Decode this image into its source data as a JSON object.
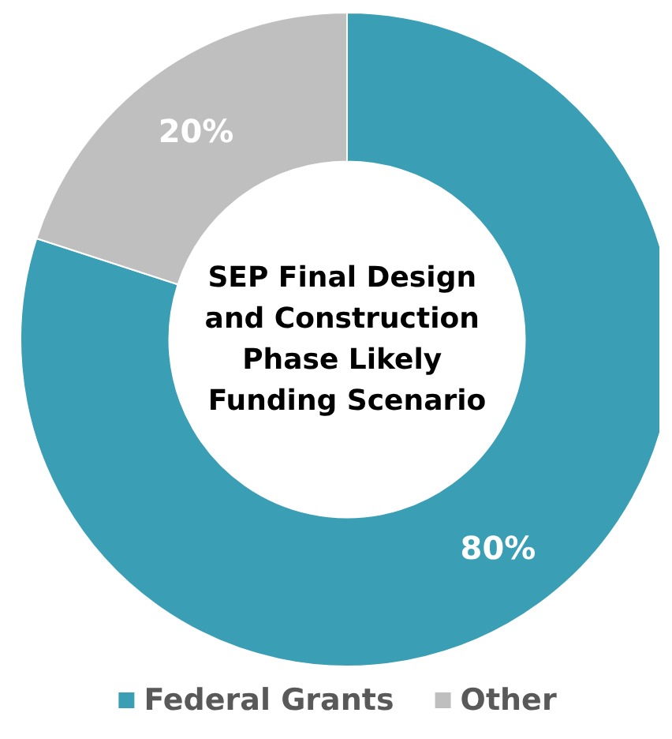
{
  "chart_data": {
    "type": "donut",
    "title": "SEP Final Design and Construction Phase Likely Funding Scenario",
    "categories": [
      "Federal Grants",
      "Other"
    ],
    "values": [
      80,
      20
    ],
    "colors": [
      "#3a9fb5",
      "#bfbfbf"
    ],
    "value_labels": [
      "80%",
      "20%"
    ],
    "legend": "bottom"
  }
}
